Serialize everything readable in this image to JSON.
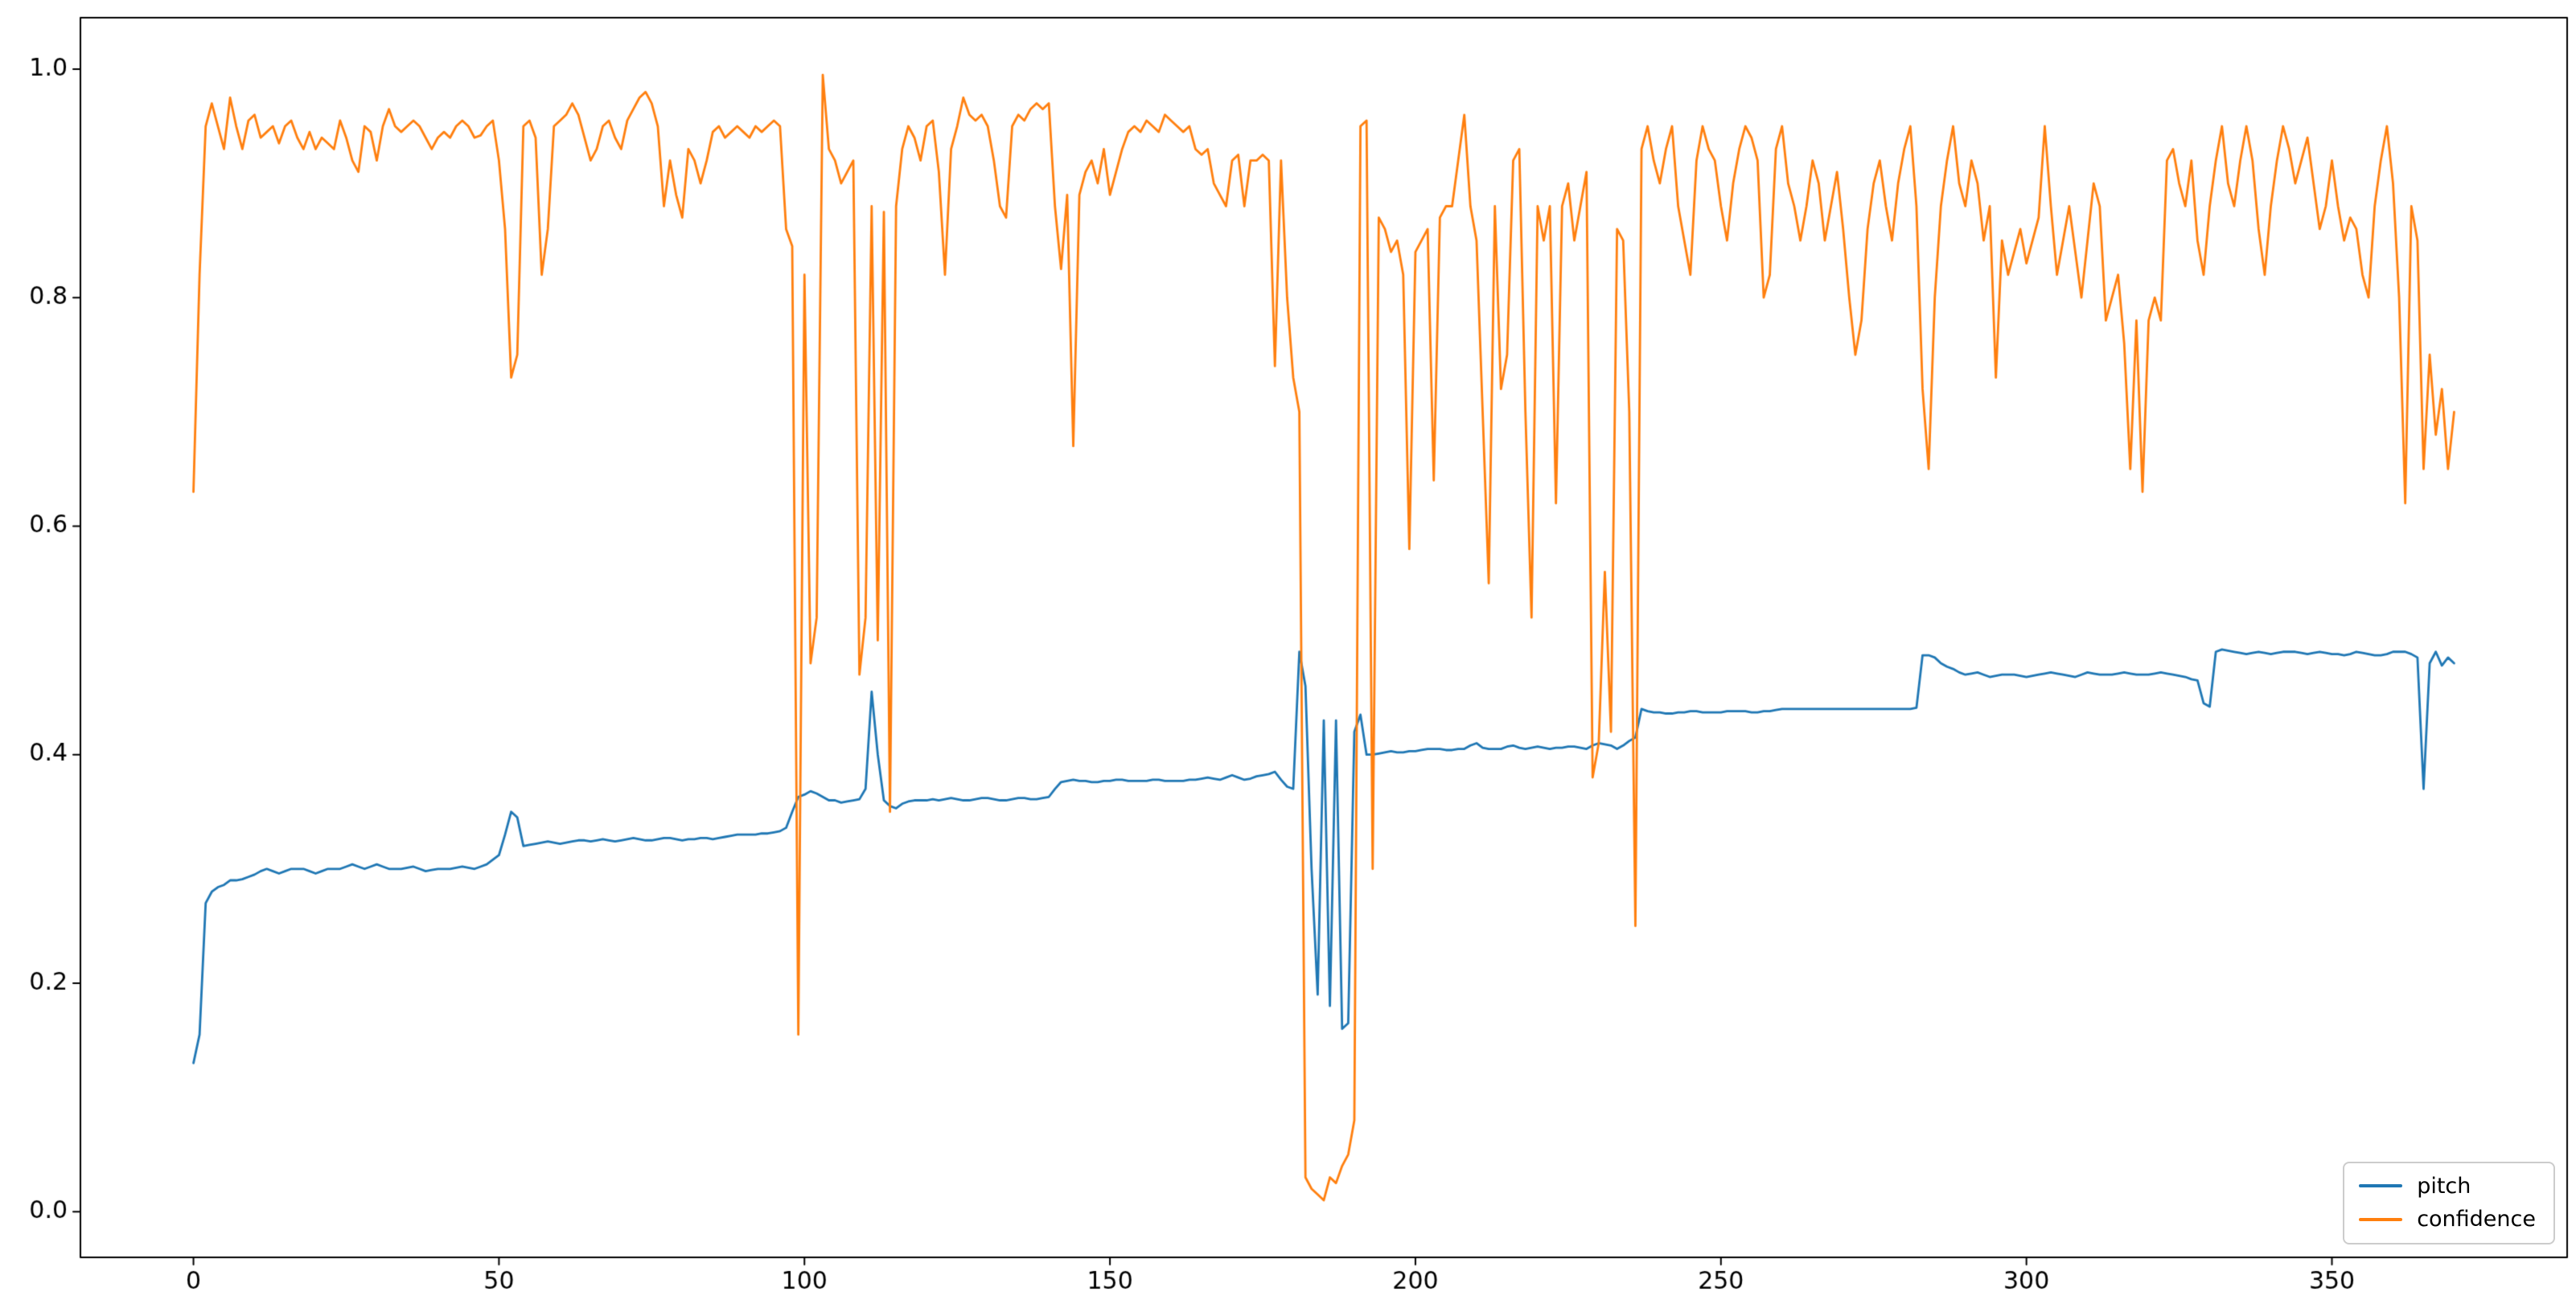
{
  "figure": {
    "background": "#ffffff",
    "axes": {
      "xlim": [
        -18.5,
        388.5
      ],
      "ylim": [
        -0.04,
        1.045
      ],
      "spine_color": "#000000",
      "tick_color": "#000000",
      "grid": false,
      "xtick_labels": [
        "0",
        "50",
        "100",
        "150",
        "200",
        "250",
        "300",
        "350"
      ],
      "ytick_labels": [
        "0.0",
        "0.2",
        "0.4",
        "0.6",
        "0.8",
        "1.0"
      ]
    },
    "legend": {
      "position": "lower right"
    }
  },
  "chart_data": {
    "type": "line",
    "title": "",
    "xlabel": "",
    "ylabel": "",
    "x_start": 0,
    "x_step": 1,
    "xticks": [
      0,
      50,
      100,
      150,
      200,
      250,
      300,
      350
    ],
    "yticks": [
      0.0,
      0.2,
      0.4,
      0.6,
      0.8,
      1.0
    ],
    "xlim": [
      -18.5,
      388.5
    ],
    "ylim": [
      -0.04,
      1.045
    ],
    "legend_position": "lower right",
    "series": [
      {
        "name": "pitch",
        "color": "#1f77b4",
        "values": [
          0.13,
          0.155,
          0.27,
          0.28,
          0.284,
          0.286,
          0.29,
          0.29,
          0.291,
          0.293,
          0.295,
          0.298,
          0.3,
          0.298,
          0.296,
          0.298,
          0.3,
          0.3,
          0.3,
          0.298,
          0.296,
          0.298,
          0.3,
          0.3,
          0.3,
          0.302,
          0.304,
          0.302,
          0.3,
          0.302,
          0.304,
          0.302,
          0.3,
          0.3,
          0.3,
          0.301,
          0.302,
          0.3,
          0.298,
          0.299,
          0.3,
          0.3,
          0.3,
          0.301,
          0.302,
          0.301,
          0.3,
          0.302,
          0.304,
          0.308,
          0.312,
          0.33,
          0.35,
          0.345,
          0.32,
          0.321,
          0.322,
          0.323,
          0.324,
          0.323,
          0.322,
          0.323,
          0.324,
          0.325,
          0.325,
          0.324,
          0.325,
          0.326,
          0.325,
          0.324,
          0.325,
          0.326,
          0.327,
          0.326,
          0.325,
          0.325,
          0.326,
          0.327,
          0.327,
          0.326,
          0.325,
          0.326,
          0.326,
          0.327,
          0.327,
          0.326,
          0.327,
          0.328,
          0.329,
          0.33,
          0.33,
          0.33,
          0.33,
          0.331,
          0.331,
          0.332,
          0.333,
          0.336,
          0.35,
          0.363,
          0.365,
          0.368,
          0.366,
          0.363,
          0.36,
          0.36,
          0.358,
          0.359,
          0.36,
          0.361,
          0.37,
          0.455,
          0.4,
          0.36,
          0.355,
          0.353,
          0.357,
          0.359,
          0.36,
          0.36,
          0.36,
          0.361,
          0.36,
          0.361,
          0.362,
          0.361,
          0.36,
          0.36,
          0.361,
          0.362,
          0.362,
          0.361,
          0.36,
          0.36,
          0.361,
          0.362,
          0.362,
          0.361,
          0.361,
          0.362,
          0.363,
          0.37,
          0.376,
          0.377,
          0.378,
          0.377,
          0.377,
          0.376,
          0.376,
          0.377,
          0.377,
          0.378,
          0.378,
          0.377,
          0.377,
          0.377,
          0.377,
          0.378,
          0.378,
          0.377,
          0.377,
          0.377,
          0.377,
          0.378,
          0.378,
          0.379,
          0.38,
          0.379,
          0.378,
          0.38,
          0.382,
          0.38,
          0.378,
          0.379,
          0.381,
          0.382,
          0.383,
          0.385,
          0.378,
          0.372,
          0.37,
          0.49,
          0.46,
          0.3,
          0.19,
          0.43,
          0.18,
          0.43,
          0.16,
          0.165,
          0.42,
          0.435,
          0.4,
          0.4,
          0.401,
          0.402,
          0.403,
          0.402,
          0.402,
          0.403,
          0.403,
          0.404,
          0.405,
          0.405,
          0.405,
          0.404,
          0.404,
          0.405,
          0.405,
          0.408,
          0.41,
          0.406,
          0.405,
          0.405,
          0.405,
          0.407,
          0.408,
          0.406,
          0.405,
          0.406,
          0.407,
          0.406,
          0.405,
          0.406,
          0.406,
          0.407,
          0.407,
          0.406,
          0.405,
          0.408,
          0.41,
          0.409,
          0.408,
          0.405,
          0.408,
          0.412,
          0.415,
          0.44,
          0.438,
          0.437,
          0.437,
          0.436,
          0.436,
          0.437,
          0.437,
          0.438,
          0.438,
          0.437,
          0.437,
          0.437,
          0.437,
          0.438,
          0.438,
          0.438,
          0.438,
          0.437,
          0.437,
          0.438,
          0.438,
          0.439,
          0.44,
          0.44,
          0.44,
          0.44,
          0.44,
          0.44,
          0.44,
          0.44,
          0.44,
          0.44,
          0.44,
          0.44,
          0.44,
          0.44,
          0.44,
          0.44,
          0.44,
          0.44,
          0.44,
          0.44,
          0.44,
          0.44,
          0.441,
          0.487,
          0.487,
          0.485,
          0.48,
          0.477,
          0.475,
          0.472,
          0.47,
          0.471,
          0.472,
          0.47,
          0.468,
          0.469,
          0.47,
          0.47,
          0.47,
          0.469,
          0.468,
          0.469,
          0.47,
          0.471,
          0.472,
          0.471,
          0.47,
          0.469,
          0.468,
          0.47,
          0.472,
          0.471,
          0.47,
          0.47,
          0.47,
          0.471,
          0.472,
          0.471,
          0.47,
          0.47,
          0.47,
          0.471,
          0.472,
          0.471,
          0.47,
          0.469,
          0.468,
          0.466,
          0.465,
          0.445,
          0.442,
          0.49,
          0.492,
          0.491,
          0.49,
          0.489,
          0.488,
          0.489,
          0.49,
          0.489,
          0.488,
          0.489,
          0.49,
          0.49,
          0.49,
          0.489,
          0.488,
          0.489,
          0.49,
          0.489,
          0.488,
          0.488,
          0.487,
          0.488,
          0.49,
          0.489,
          0.488,
          0.487,
          0.487,
          0.488,
          0.49,
          0.49,
          0.49,
          0.488,
          0.485,
          0.37,
          0.48,
          0.49,
          0.478,
          0.485,
          0.48
        ]
      },
      {
        "name": "confidence",
        "color": "#ff7f0e",
        "values": [
          0.63,
          0.82,
          0.95,
          0.97,
          0.95,
          0.93,
          0.975,
          0.95,
          0.93,
          0.955,
          0.96,
          0.94,
          0.945,
          0.95,
          0.935,
          0.95,
          0.955,
          0.94,
          0.93,
          0.945,
          0.93,
          0.94,
          0.935,
          0.93,
          0.955,
          0.94,
          0.92,
          0.91,
          0.95,
          0.945,
          0.92,
          0.95,
          0.965,
          0.95,
          0.945,
          0.95,
          0.955,
          0.95,
          0.94,
          0.93,
          0.94,
          0.945,
          0.94,
          0.95,
          0.955,
          0.95,
          0.94,
          0.942,
          0.95,
          0.955,
          0.92,
          0.86,
          0.73,
          0.75,
          0.95,
          0.955,
          0.94,
          0.82,
          0.86,
          0.95,
          0.955,
          0.96,
          0.97,
          0.96,
          0.94,
          0.92,
          0.93,
          0.95,
          0.955,
          0.94,
          0.93,
          0.955,
          0.965,
          0.975,
          0.98,
          0.97,
          0.95,
          0.88,
          0.92,
          0.89,
          0.87,
          0.93,
          0.92,
          0.9,
          0.92,
          0.945,
          0.95,
          0.94,
          0.945,
          0.95,
          0.945,
          0.94,
          0.95,
          0.945,
          0.95,
          0.955,
          0.95,
          0.86,
          0.845,
          0.155,
          0.82,
          0.48,
          0.52,
          0.995,
          0.93,
          0.92,
          0.9,
          0.91,
          0.92,
          0.47,
          0.52,
          0.88,
          0.5,
          0.875,
          0.35,
          0.88,
          0.93,
          0.95,
          0.94,
          0.92,
          0.95,
          0.955,
          0.91,
          0.82,
          0.93,
          0.95,
          0.975,
          0.96,
          0.955,
          0.96,
          0.95,
          0.92,
          0.88,
          0.87,
          0.95,
          0.96,
          0.955,
          0.965,
          0.97,
          0.965,
          0.97,
          0.88,
          0.825,
          0.89,
          0.67,
          0.89,
          0.91,
          0.92,
          0.9,
          0.93,
          0.89,
          0.91,
          0.93,
          0.945,
          0.95,
          0.945,
          0.955,
          0.95,
          0.945,
          0.96,
          0.955,
          0.95,
          0.945,
          0.95,
          0.93,
          0.925,
          0.93,
          0.9,
          0.89,
          0.88,
          0.92,
          0.925,
          0.88,
          0.92,
          0.92,
          0.925,
          0.92,
          0.74,
          0.92,
          0.8,
          0.73,
          0.7,
          0.03,
          0.02,
          0.015,
          0.01,
          0.03,
          0.025,
          0.04,
          0.05,
          0.08,
          0.95,
          0.955,
          0.3,
          0.87,
          0.86,
          0.84,
          0.85,
          0.82,
          0.58,
          0.84,
          0.85,
          0.86,
          0.64,
          0.87,
          0.88,
          0.88,
          0.92,
          0.96,
          0.88,
          0.85,
          0.7,
          0.55,
          0.88,
          0.72,
          0.75,
          0.92,
          0.93,
          0.7,
          0.52,
          0.88,
          0.85,
          0.88,
          0.62,
          0.88,
          0.9,
          0.85,
          0.88,
          0.91,
          0.38,
          0.41,
          0.56,
          0.42,
          0.86,
          0.85,
          0.7,
          0.25,
          0.93,
          0.95,
          0.92,
          0.9,
          0.93,
          0.95,
          0.88,
          0.85,
          0.82,
          0.92,
          0.95,
          0.93,
          0.92,
          0.88,
          0.85,
          0.9,
          0.93,
          0.95,
          0.94,
          0.92,
          0.8,
          0.82,
          0.93,
          0.95,
          0.9,
          0.88,
          0.85,
          0.88,
          0.92,
          0.9,
          0.85,
          0.88,
          0.91,
          0.86,
          0.8,
          0.75,
          0.78,
          0.86,
          0.9,
          0.92,
          0.88,
          0.85,
          0.9,
          0.93,
          0.95,
          0.88,
          0.72,
          0.65,
          0.8,
          0.88,
          0.92,
          0.95,
          0.9,
          0.88,
          0.92,
          0.9,
          0.85,
          0.88,
          0.73,
          0.85,
          0.82,
          0.84,
          0.86,
          0.83,
          0.85,
          0.87,
          0.95,
          0.88,
          0.82,
          0.85,
          0.88,
          0.84,
          0.8,
          0.85,
          0.9,
          0.88,
          0.78,
          0.8,
          0.82,
          0.76,
          0.65,
          0.78,
          0.63,
          0.78,
          0.8,
          0.78,
          0.92,
          0.93,
          0.9,
          0.88,
          0.92,
          0.85,
          0.82,
          0.88,
          0.92,
          0.95,
          0.9,
          0.88,
          0.92,
          0.95,
          0.92,
          0.86,
          0.82,
          0.88,
          0.92,
          0.95,
          0.93,
          0.9,
          0.92,
          0.94,
          0.9,
          0.86,
          0.88,
          0.92,
          0.88,
          0.85,
          0.87,
          0.86,
          0.82,
          0.8,
          0.88,
          0.92,
          0.95,
          0.9,
          0.8,
          0.62,
          0.88,
          0.85,
          0.65,
          0.75,
          0.68,
          0.72,
          0.65,
          0.7
        ]
      }
    ]
  }
}
